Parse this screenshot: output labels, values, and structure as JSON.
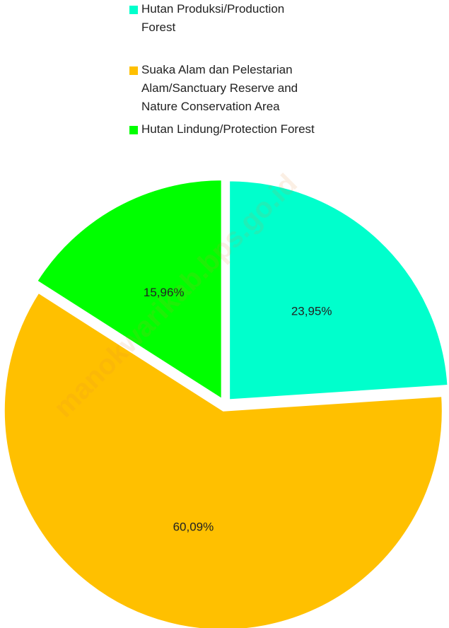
{
  "chart_data": {
    "type": "pie",
    "categories": [
      "Hutan Produksi/Production Forest",
      "Suaka Alam dan Pelestarian Alam/Sanctuary Reserve and Nature Conservation Area",
      "Hutan Lindung/Protection Forest"
    ],
    "values": [
      23.95,
      60.09,
      15.96
    ],
    "value_labels": [
      "23,95%",
      "60,09%",
      "15,96%"
    ],
    "colors": [
      "#00ffcc",
      "#ffc000",
      "#00ff00"
    ],
    "legend": "top",
    "watermark": "manokwarikab.bps.go.id"
  }
}
